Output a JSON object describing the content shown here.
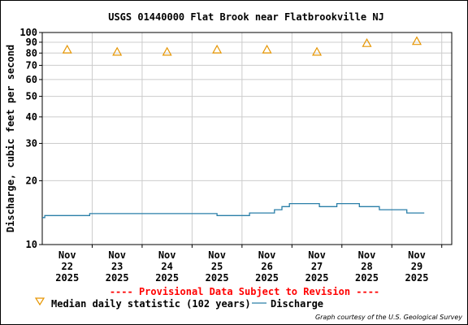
{
  "chart_data": {
    "type": "line",
    "title": "USGS 01440000 Flat Brook near Flatbrookville NJ",
    "ylabel": "Discharge, cubic feet per second",
    "xlabel": "",
    "y_scale": "log",
    "ylim": [
      10,
      100
    ],
    "y_ticks": [
      10,
      20,
      30,
      40,
      50,
      60,
      70,
      80,
      90,
      100
    ],
    "y_tick_labels": [
      "10",
      "20",
      "30",
      "40",
      "50",
      "60",
      "70",
      "80",
      "90",
      "100"
    ],
    "x_ticks": [
      {
        "label": [
          "Nov",
          "22",
          "2025"
        ],
        "day": 22
      },
      {
        "label": [
          "Nov",
          "23",
          "2025"
        ],
        "day": 23
      },
      {
        "label": [
          "Nov",
          "24",
          "2025"
        ],
        "day": 24
      },
      {
        "label": [
          "Nov",
          "25",
          "2025"
        ],
        "day": 25
      },
      {
        "label": [
          "Nov",
          "26",
          "2025"
        ],
        "day": 26
      },
      {
        "label": [
          "Nov",
          "27",
          "2025"
        ],
        "day": 27
      },
      {
        "label": [
          "Nov",
          "28",
          "2025"
        ],
        "day": 28
      },
      {
        "label": [
          "Nov",
          "29",
          "2025"
        ],
        "day": 29
      }
    ],
    "xlim": [
      21.5,
      29.7
    ],
    "grid": true,
    "colors": {
      "discharge": "#2a7fa8",
      "median": "#e69500",
      "grid": "#cccccc",
      "provisional": "#ff0000"
    },
    "series": [
      {
        "name": "Discharge",
        "style": "step-line",
        "points": [
          [
            21.5,
            13.4
          ],
          [
            21.55,
            13.4
          ],
          [
            21.55,
            13.7
          ],
          [
            22.45,
            13.7
          ],
          [
            22.45,
            14.0
          ],
          [
            25.0,
            14.0
          ],
          [
            25.0,
            13.7
          ],
          [
            25.65,
            13.7
          ],
          [
            25.65,
            14.1
          ],
          [
            26.15,
            14.1
          ],
          [
            26.15,
            14.6
          ],
          [
            26.3,
            14.6
          ],
          [
            26.3,
            15.1
          ],
          [
            26.45,
            15.1
          ],
          [
            26.45,
            15.6
          ],
          [
            27.05,
            15.6
          ],
          [
            27.05,
            15.1
          ],
          [
            27.4,
            15.1
          ],
          [
            27.4,
            15.6
          ],
          [
            27.85,
            15.6
          ],
          [
            27.85,
            15.1
          ],
          [
            28.25,
            15.1
          ],
          [
            28.25,
            14.6
          ],
          [
            28.8,
            14.6
          ],
          [
            28.8,
            14.1
          ],
          [
            29.15,
            14.1
          ]
        ]
      },
      {
        "name": "Median daily statistic (102 years)",
        "style": "triangle-marker",
        "points": [
          [
            22.0,
            83
          ],
          [
            23.0,
            81
          ],
          [
            24.0,
            81
          ],
          [
            25.0,
            83
          ],
          [
            26.0,
            83
          ],
          [
            27.0,
            81
          ],
          [
            28.0,
            89
          ],
          [
            29.0,
            91
          ]
        ]
      }
    ],
    "provisional_note": "---- Provisional Data Subject to Revision ----",
    "legend": [
      {
        "label": "Median daily statistic (102 years)",
        "symbol": "triangle"
      },
      {
        "label": "Discharge",
        "symbol": "line"
      }
    ],
    "legend_position": "bottom-left",
    "credit": "Graph courtesy of the U.S. Geological Survey"
  }
}
